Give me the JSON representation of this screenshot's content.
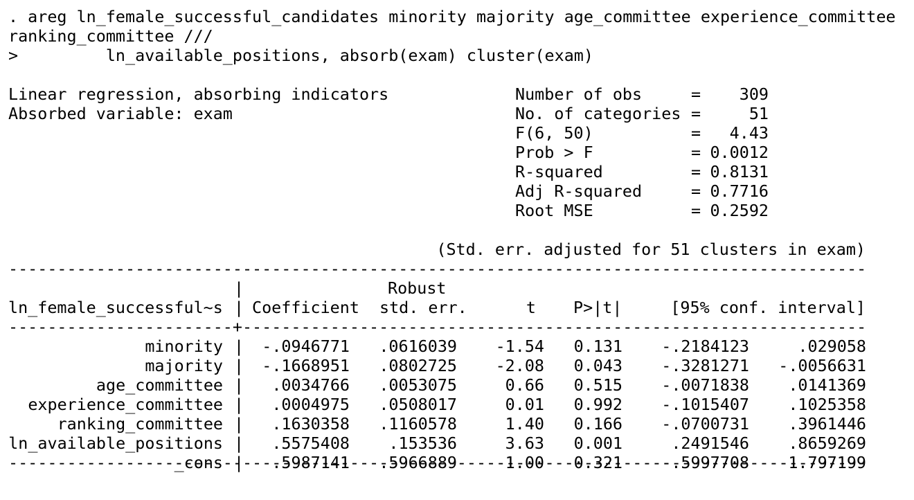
{
  "command": {
    "line1": ". areg ln_female_successful_candidates minority majority age_committee experience_committee",
    "line2": "ranking_committee ///",
    "line3": ">         ln_available_positions, absorb(exam) cluster(exam)"
  },
  "header": {
    "model": "Linear regression, absorbing indicators",
    "absorbed": "Absorbed variable: exam",
    "stats": [
      {
        "label": "Number of obs",
        "value": "309"
      },
      {
        "label": "No. of categories",
        "value": "51"
      },
      {
        "label": "F(6, 50)",
        "value": "4.43"
      },
      {
        "label": "Prob > F",
        "value": "0.0012"
      },
      {
        "label": "R-squared",
        "value": "0.8131"
      },
      {
        "label": "Adj R-squared",
        "value": "0.7716"
      },
      {
        "label": "Root MSE",
        "value": "0.2592"
      }
    ],
    "note": "(Std. err. adjusted for 51 clusters in exam)"
  },
  "table": {
    "depvar": "ln_female_successful~s",
    "robust_label": "Robust",
    "columns": [
      "Coefficient",
      "std. err.",
      "t",
      "P>|t|",
      "[95% conf. interval]"
    ],
    "rows": [
      {
        "var": "minority",
        "coef": "-.0946771",
        "se": ".0616039",
        "t": "-1.54",
        "p": "0.131",
        "lo": "-.2184123",
        "hi": ".029058"
      },
      {
        "var": "majority",
        "coef": "-.1668951",
        "se": ".0802725",
        "t": "-2.08",
        "p": "0.043",
        "lo": "-.3281271",
        "hi": "-.0056631"
      },
      {
        "var": "age_committee",
        "coef": ".0034766",
        "se": ".0053075",
        "t": "0.66",
        "p": "0.515",
        "lo": "-.0071838",
        "hi": ".0141369"
      },
      {
        "var": "experience_committee",
        "coef": ".0004975",
        "se": ".0508017",
        "t": "0.01",
        "p": "0.992",
        "lo": "-.1015407",
        "hi": ".1025358"
      },
      {
        "var": "ranking_committee",
        "coef": ".1630358",
        "se": ".1160578",
        "t": "1.40",
        "p": "0.166",
        "lo": "-.0700731",
        "hi": ".3961446"
      },
      {
        "var": "ln_available_positions",
        "coef": ".5575408",
        "se": ".153536",
        "t": "3.63",
        "p": "0.001",
        "lo": ".2491546",
        "hi": ".8659269"
      },
      {
        "var": "_cons",
        "coef": ".5987141",
        "se": ".5966889",
        "t": "1.00",
        "p": "0.321",
        "lo": "-.5997708",
        "hi": "1.797199"
      }
    ]
  }
}
